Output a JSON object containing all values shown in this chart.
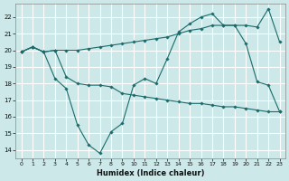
{
  "xlabel": "Humidex (Indice chaleur)",
  "bg_color": "#cce8e8",
  "grid_color": "#ffffff",
  "line_color": "#1a6b6b",
  "xlim": [
    -0.5,
    23.5
  ],
  "ylim": [
    13.5,
    22.8
  ],
  "yticks": [
    14,
    15,
    16,
    17,
    18,
    19,
    20,
    21,
    22
  ],
  "xticks": [
    0,
    1,
    2,
    3,
    4,
    5,
    6,
    7,
    8,
    9,
    10,
    11,
    12,
    13,
    14,
    15,
    16,
    17,
    18,
    19,
    20,
    21,
    22,
    23
  ],
  "line1_x": [
    0,
    1,
    2,
    3,
    4,
    5,
    6,
    7,
    8,
    9,
    10,
    11,
    12,
    13,
    14,
    15,
    16,
    17,
    18,
    19,
    20,
    21,
    22,
    23
  ],
  "line1_y": [
    19.9,
    20.2,
    19.9,
    18.3,
    17.7,
    15.5,
    14.3,
    13.8,
    15.1,
    15.6,
    17.9,
    18.3,
    18.0,
    19.5,
    21.1,
    21.6,
    22.0,
    22.2,
    21.5,
    21.5,
    20.4,
    18.1,
    17.9,
    16.3
  ],
  "line2_x": [
    0,
    1,
    2,
    3,
    4,
    5,
    6,
    7,
    8,
    9,
    10,
    11,
    12,
    13,
    14,
    15,
    16,
    17,
    18,
    19,
    20,
    21,
    22,
    23
  ],
  "line2_y": [
    19.9,
    20.2,
    19.9,
    20.0,
    20.0,
    20.0,
    20.1,
    20.2,
    20.3,
    20.4,
    20.5,
    20.6,
    20.7,
    20.8,
    21.0,
    21.2,
    21.3,
    21.5,
    21.5,
    21.5,
    21.5,
    21.4,
    22.5,
    20.5
  ],
  "line3_x": [
    0,
    1,
    2,
    3,
    4,
    5,
    6,
    7,
    8,
    9,
    10,
    11,
    12,
    13,
    14,
    15,
    16,
    17,
    18,
    19,
    20,
    21,
    22,
    23
  ],
  "line3_y": [
    19.9,
    20.2,
    19.9,
    20.0,
    18.4,
    18.0,
    17.9,
    17.9,
    17.8,
    17.4,
    17.3,
    17.2,
    17.1,
    17.0,
    16.9,
    16.8,
    16.8,
    16.7,
    16.6,
    16.6,
    16.5,
    16.4,
    16.3,
    16.3
  ]
}
